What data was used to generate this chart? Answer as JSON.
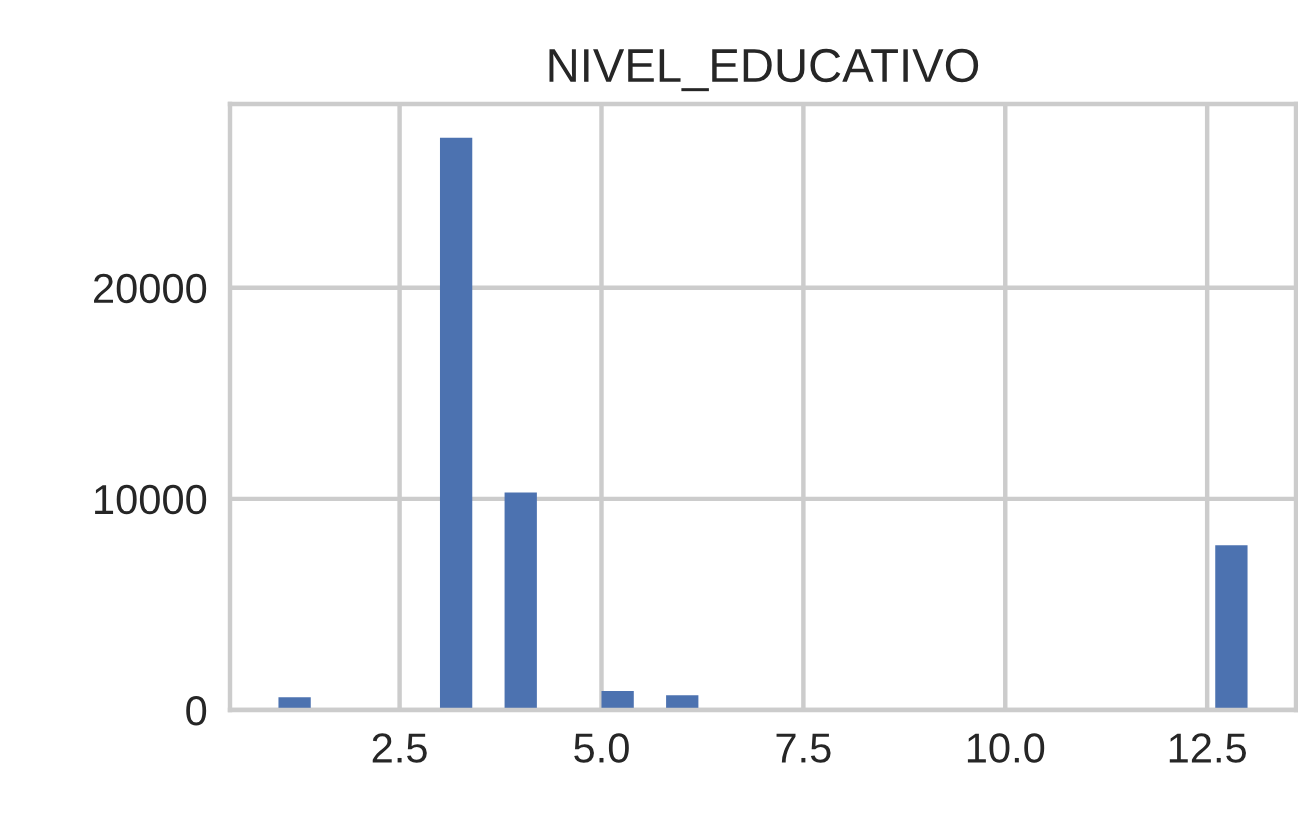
{
  "chart_data": {
    "type": "histogram",
    "title": "NIVEL_EDUCATIVO",
    "bins": [
      1.0,
      1.4,
      1.8,
      2.2,
      2.6,
      3.0,
      3.4,
      3.8,
      4.2,
      4.6,
      5.0,
      5.4,
      5.8,
      6.2,
      6.6,
      7.0,
      7.4,
      7.8,
      8.2,
      8.6,
      9.0,
      9.4,
      9.8,
      10.2,
      10.6,
      11.0,
      11.4,
      11.8,
      12.2,
      12.6,
      13.0
    ],
    "values": [
      600,
      0,
      100,
      0,
      0,
      27100,
      0,
      10300,
      0,
      0,
      900,
      0,
      700,
      0,
      0,
      0,
      0,
      100,
      0,
      0,
      0,
      0,
      0,
      0,
      0,
      0,
      0,
      0,
      0,
      7800
    ],
    "color": "#4c72b0",
    "xlim": [
      0.4,
      13.6
    ],
    "ylim": [
      0,
      28700
    ],
    "xticks": [
      {
        "value": 2.5,
        "label": "2.5"
      },
      {
        "value": 5.0,
        "label": "5.0"
      },
      {
        "value": 7.5,
        "label": "7.5"
      },
      {
        "value": 10.0,
        "label": "10.0"
      },
      {
        "value": 12.5,
        "label": "12.5"
      }
    ],
    "yticks": [
      0,
      10000,
      20000
    ],
    "grid": true
  }
}
